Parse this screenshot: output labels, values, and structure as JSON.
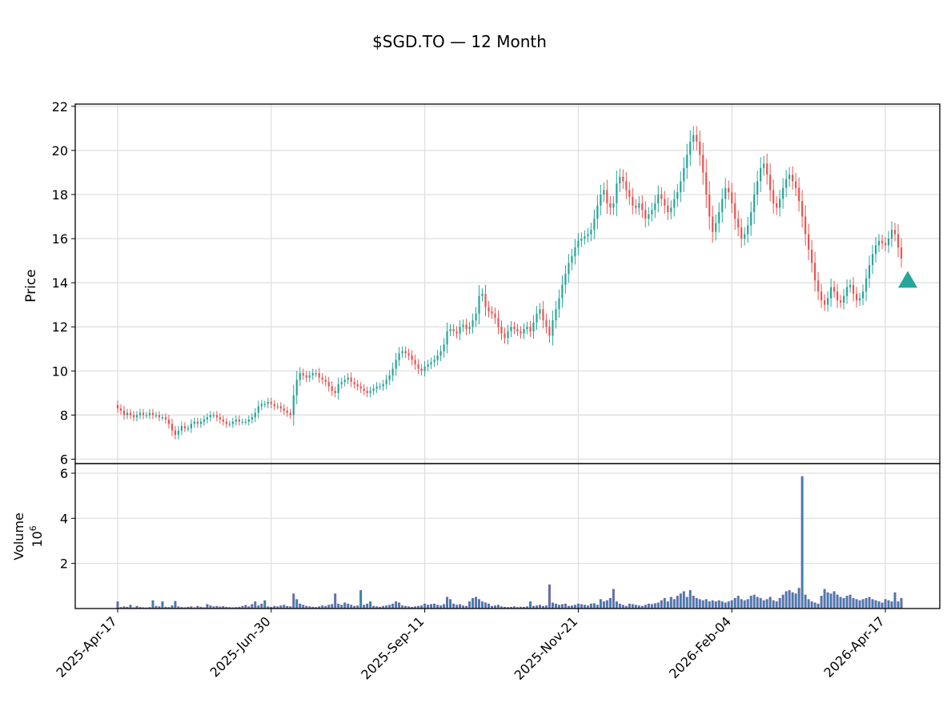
{
  "title": "$SGD.TO — 12 Month",
  "colors": {
    "up": "#26a69a",
    "down": "#ef5350",
    "volume_fill": "#1f8fb5",
    "volume_edge": "#7b5ea7",
    "grid": "#dddddd",
    "axis": "#000000",
    "marker": "#26a69a"
  },
  "chart_data": {
    "type": "candlestick",
    "grid": true,
    "x_ticks": [
      "2025-Apr-17",
      "2025-Jun-30",
      "2025-Sep-11",
      "2025-Nov-21",
      "2026-Feb-04",
      "2026-Apr-17"
    ],
    "price_panel": {
      "ylabel": "Price",
      "ylim": [
        5.8,
        22.1
      ],
      "yticks": [
        6,
        8,
        10,
        12,
        14,
        16,
        18,
        20,
        22
      ]
    },
    "volume_panel": {
      "ylabel": "Volume",
      "multiplier_label": "10^6",
      "ylim": [
        0,
        6.0
      ],
      "yticks": [
        2,
        4,
        6
      ]
    },
    "marker": {
      "shape": "triangle-up",
      "date": "2026-Apr-21",
      "price": 14.1
    },
    "closes": [
      8.3,
      8.2,
      8.0,
      8.1,
      8.0,
      7.9,
      8.0,
      8.1,
      8.0,
      8.0,
      8.1,
      8.0,
      8.0,
      7.9,
      7.9,
      7.8,
      7.6,
      7.3,
      7.1,
      7.3,
      7.5,
      7.4,
      7.4,
      7.6,
      7.7,
      7.6,
      7.7,
      7.8,
      7.9,
      8.0,
      8.0,
      7.9,
      7.8,
      7.7,
      7.6,
      7.6,
      7.7,
      7.8,
      7.7,
      7.7,
      7.7,
      7.8,
      7.9,
      8.1,
      8.4,
      8.5,
      8.5,
      8.6,
      8.5,
      8.4,
      8.4,
      8.3,
      8.2,
      8.1,
      8.0,
      8.9,
      9.6,
      9.9,
      9.8,
      9.7,
      9.8,
      9.9,
      9.9,
      9.7,
      9.6,
      9.5,
      9.3,
      9.1,
      9.0,
      9.4,
      9.5,
      9.6,
      9.7,
      9.5,
      9.4,
      9.3,
      9.2,
      9.1,
      9.0,
      9.1,
      9.2,
      9.3,
      9.3,
      9.4,
      9.6,
      9.8,
      10.1,
      10.5,
      10.8,
      10.9,
      10.8,
      10.7,
      10.5,
      10.3,
      10.1,
      10.0,
      10.2,
      10.3,
      10.4,
      10.5,
      10.7,
      10.9,
      11.2,
      11.8,
      11.9,
      11.8,
      11.7,
      12.0,
      12.1,
      11.9,
      12.0,
      12.3,
      12.6,
      13.4,
      13.5,
      12.9,
      12.7,
      12.6,
      12.4,
      12.0,
      11.7,
      11.5,
      11.8,
      12.0,
      11.9,
      11.8,
      11.7,
      11.9,
      12.0,
      11.8,
      12.2,
      12.6,
      12.8,
      12.3,
      12.0,
      11.6,
      12.3,
      12.8,
      13.3,
      13.9,
      14.4,
      14.9,
      15.2,
      15.6,
      15.9,
      16.0,
      16.1,
      16.2,
      16.4,
      16.9,
      17.5,
      18.0,
      18.2,
      17.6,
      17.4,
      17.6,
      18.5,
      18.8,
      18.6,
      18.2,
      17.9,
      17.5,
      17.4,
      17.6,
      17.3,
      16.9,
      17.1,
      17.3,
      17.6,
      18.0,
      17.8,
      17.5,
      17.2,
      17.4,
      17.8,
      18.1,
      18.6,
      19.2,
      19.8,
      20.4,
      20.7,
      20.4,
      19.8,
      19.0,
      18.0,
      17.0,
      16.3,
      16.7,
      17.2,
      17.8,
      18.3,
      18.1,
      17.6,
      16.9,
      16.5,
      16.0,
      16.2,
      16.6,
      17.2,
      18.0,
      18.6,
      19.2,
      19.4,
      18.9,
      18.2,
      17.6,
      17.4,
      17.8,
      18.3,
      18.7,
      18.9,
      18.6,
      18.3,
      17.7,
      17.0,
      16.2,
      15.5,
      14.9,
      14.1,
      13.6,
      13.2,
      13.0,
      13.3,
      13.8,
      13.6,
      13.2,
      13.1,
      13.4,
      13.8,
      13.9,
      13.5,
      13.2,
      13.3,
      13.6,
      14.2,
      14.8,
      15.3,
      15.7,
      15.9,
      15.8,
      15.7,
      16.0,
      16.4,
      16.2,
      15.6,
      15.1
    ],
    "volumes": [
      0.3,
      0.05,
      0.08,
      0.06,
      0.15,
      0.04,
      0.1,
      0.05,
      0.04,
      0.03,
      0.05,
      0.35,
      0.1,
      0.08,
      0.3,
      0.06,
      0.05,
      0.12,
      0.32,
      0.08,
      0.05,
      0.04,
      0.06,
      0.08,
      0.04,
      0.1,
      0.06,
      0.04,
      0.18,
      0.12,
      0.08,
      0.1,
      0.07,
      0.09,
      0.06,
      0.05,
      0.04,
      0.05,
      0.06,
      0.1,
      0.14,
      0.08,
      0.18,
      0.3,
      0.12,
      0.2,
      0.35,
      0.08,
      0.06,
      0.1,
      0.08,
      0.12,
      0.15,
      0.1,
      0.08,
      0.65,
      0.4,
      0.2,
      0.15,
      0.1,
      0.08,
      0.06,
      0.05,
      0.08,
      0.12,
      0.1,
      0.15,
      0.18,
      0.65,
      0.2,
      0.15,
      0.25,
      0.2,
      0.15,
      0.1,
      0.12,
      0.8,
      0.15,
      0.2,
      0.3,
      0.1,
      0.08,
      0.06,
      0.1,
      0.12,
      0.15,
      0.2,
      0.3,
      0.25,
      0.12,
      0.1,
      0.08,
      0.06,
      0.08,
      0.1,
      0.12,
      0.2,
      0.15,
      0.18,
      0.2,
      0.15,
      0.12,
      0.18,
      0.5,
      0.4,
      0.2,
      0.15,
      0.18,
      0.12,
      0.1,
      0.3,
      0.45,
      0.5,
      0.4,
      0.3,
      0.25,
      0.2,
      0.1,
      0.12,
      0.15,
      0.08,
      0.06,
      0.05,
      0.06,
      0.08,
      0.05,
      0.06,
      0.06,
      0.08,
      0.3,
      0.1,
      0.12,
      0.15,
      0.1,
      0.12,
      1.05,
      0.25,
      0.2,
      0.15,
      0.18,
      0.2,
      0.1,
      0.12,
      0.15,
      0.2,
      0.18,
      0.15,
      0.12,
      0.2,
      0.22,
      0.15,
      0.4,
      0.3,
      0.35,
      0.45,
      0.85,
      0.3,
      0.2,
      0.15,
      0.1,
      0.2,
      0.18,
      0.15,
      0.12,
      0.1,
      0.15,
      0.2,
      0.18,
      0.22,
      0.25,
      0.35,
      0.45,
      0.3,
      0.5,
      0.4,
      0.55,
      0.65,
      0.75,
      0.5,
      0.8,
      0.55,
      0.45,
      0.4,
      0.35,
      0.4,
      0.3,
      0.35,
      0.3,
      0.35,
      0.3,
      0.25,
      0.3,
      0.35,
      0.45,
      0.55,
      0.4,
      0.35,
      0.4,
      0.55,
      0.6,
      0.5,
      0.45,
      0.35,
      0.4,
      0.5,
      0.35,
      0.3,
      0.45,
      0.6,
      0.75,
      0.8,
      0.7,
      0.65,
      0.9,
      5.85,
      0.6,
      0.4,
      0.3,
      0.25,
      0.2,
      0.55,
      0.85,
      0.7,
      0.65,
      0.75,
      0.6,
      0.5,
      0.45,
      0.55,
      0.6,
      0.45,
      0.4,
      0.35,
      0.4,
      0.45,
      0.5,
      0.4,
      0.35,
      0.3,
      0.25,
      0.4,
      0.35,
      0.3,
      0.7,
      0.3,
      0.45
    ]
  }
}
